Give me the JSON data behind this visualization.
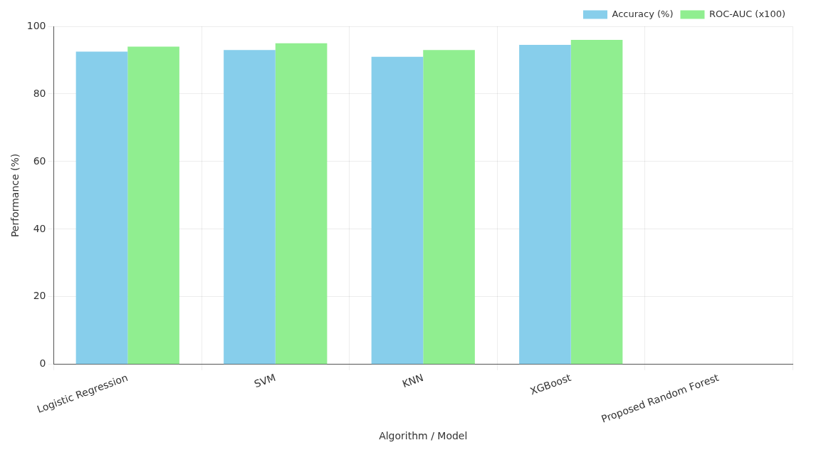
{
  "chart_data": {
    "type": "bar",
    "xlabel": "Algorithm / Model",
    "ylabel": "Performance (%)",
    "categories": [
      "Logistic Regression",
      "SVM",
      "KNN",
      "XGBoost",
      "Proposed Random Forest"
    ],
    "series": [
      {
        "name": "Accuracy (%)",
        "color": "#87ceeb",
        "values": [
          92.5,
          93,
          91,
          94.5,
          null
        ]
      },
      {
        "name": "ROC-AUC (x100)",
        "color": "#90ee90",
        "values": [
          94,
          95,
          93,
          96,
          null
        ]
      }
    ],
    "ylim": [
      0,
      100
    ],
    "yticks": [
      0,
      20,
      40,
      60,
      80,
      100
    ],
    "grid": true,
    "legend": "top right"
  }
}
